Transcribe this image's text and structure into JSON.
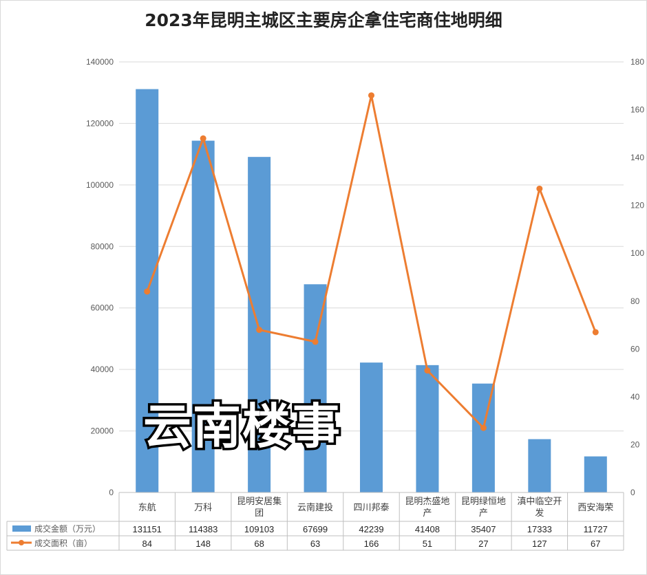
{
  "title": "2023年昆明主城区主要房企拿住宅商住地明细",
  "watermark": "云南楼事",
  "chart_data": {
    "type": "bar",
    "title": "2023年昆明主城区主要房企拿住宅商住地明细",
    "categories": [
      "东航",
      "万科",
      "昆明安居集团",
      "云南建投",
      "四川邦泰",
      "昆明杰盛地产",
      "昆明绿恒地产",
      "滇中临空开发",
      "西安海荣"
    ],
    "category_lines": [
      [
        "东航"
      ],
      [
        "万科"
      ],
      [
        "昆明安居集",
        "团"
      ],
      [
        "云南建投"
      ],
      [
        "四川邦泰"
      ],
      [
        "昆明杰盛地",
        "产"
      ],
      [
        "昆明绿恒地",
        "产"
      ],
      [
        "滇中临空开",
        "发"
      ],
      [
        "西安海荣"
      ]
    ],
    "series": [
      {
        "name": "成交金额（万元）",
        "type": "bar",
        "axis": "left",
        "color": "#5b9bd5",
        "values": [
          131151,
          114383,
          109103,
          67699,
          42239,
          41408,
          35407,
          17333,
          11727
        ]
      },
      {
        "name": "成交面积（亩）",
        "type": "line",
        "axis": "right",
        "color": "#ed7d31",
        "values": [
          84,
          148,
          68,
          63,
          166,
          51,
          27,
          127,
          67
        ]
      }
    ],
    "y_left": {
      "min": 0,
      "max": 140000,
      "step": 20000
    },
    "y_right": {
      "min": 0,
      "max": 180,
      "step": 20
    },
    "grid": true,
    "legend": "data-table"
  }
}
